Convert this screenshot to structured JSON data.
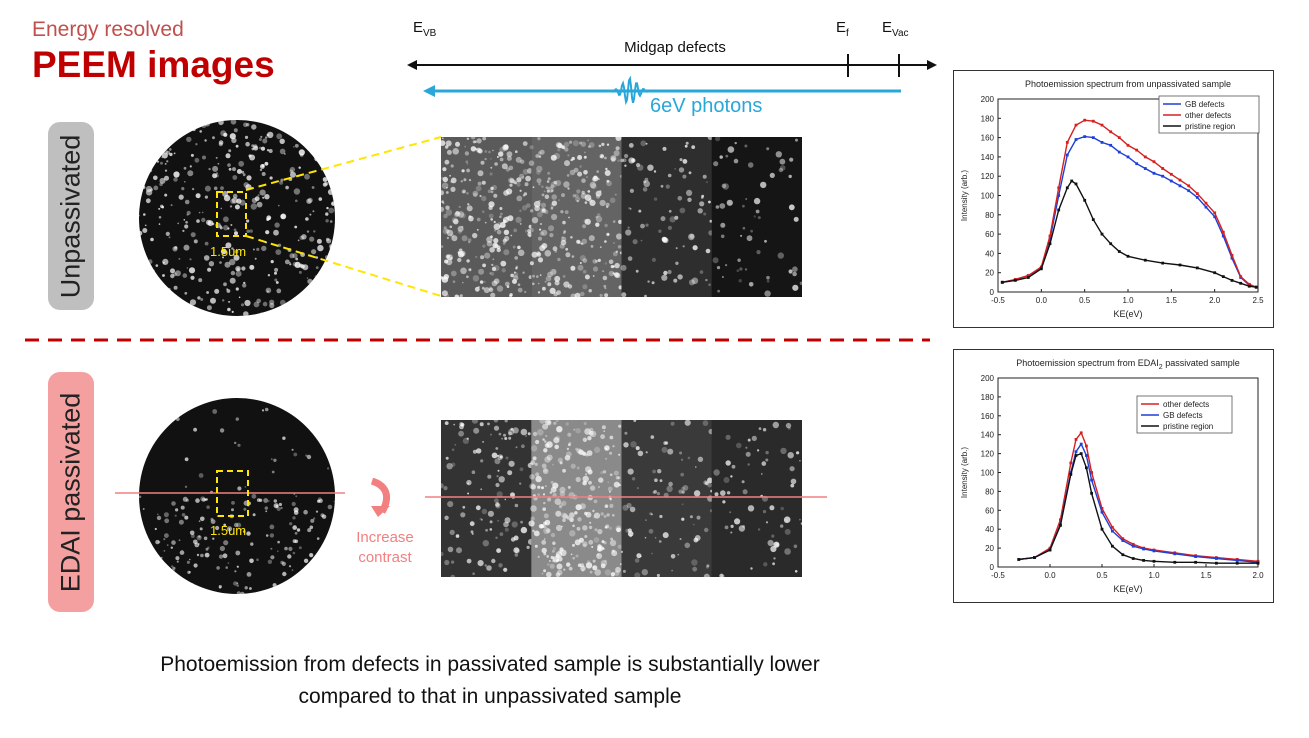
{
  "header": {
    "subtitle": "Energy resolved",
    "title": "PEEM images"
  },
  "labels": {
    "unpassivated": "Unpassivated",
    "passivated": "EDAI passivated",
    "scale": "1.5um",
    "increase": "Increase",
    "contrast": "contrast"
  },
  "energy_axis": {
    "evb_main": "E",
    "evb_sub": "VB",
    "ef_main": "E",
    "ef_sub": "f",
    "evac_main": "E",
    "evac_sub": "Vac",
    "midgap": "Midgap defects",
    "photons": "6eV photons"
  },
  "footer": {
    "line1": "Photoemission from defects in passivated sample is substantially lower",
    "line2": "compared to that in unpassivated sample"
  },
  "colors": {
    "red": "#c00000",
    "blue_series": "#1f3fd6",
    "red_series": "#d62020",
    "black_series": "#111111",
    "photon": "#29a7d8",
    "yellow": "#ffe600"
  },
  "chart_data": [
    {
      "type": "line",
      "title": "Photoemission spectrum from unpassivated sample",
      "xlabel": "KE(eV)",
      "ylabel": "Intensity (arb.)",
      "xlim": [
        -0.5,
        2.5
      ],
      "ylim": [
        0,
        200
      ],
      "xticks": [
        "-0.5",
        "0.0",
        "0.5",
        "1.0",
        "1.5",
        "2.0",
        "2.5"
      ],
      "yticks": [
        "0",
        "20",
        "40",
        "60",
        "80",
        "100",
        "120",
        "140",
        "160",
        "180",
        "200"
      ],
      "legend": "top-right",
      "series": [
        {
          "name": "GB defects",
          "color": "#1f3fd6",
          "x": [
            -0.45,
            -0.3,
            -0.15,
            0.0,
            0.1,
            0.2,
            0.3,
            0.4,
            0.5,
            0.6,
            0.7,
            0.8,
            0.9,
            1.0,
            1.1,
            1.2,
            1.3,
            1.4,
            1.5,
            1.6,
            1.7,
            1.8,
            1.9,
            2.0,
            2.1,
            2.2,
            2.3,
            2.4,
            2.48
          ],
          "y": [
            10,
            13,
            17,
            25,
            55,
            100,
            142,
            158,
            161,
            160,
            155,
            152,
            145,
            140,
            133,
            128,
            123,
            120,
            115,
            110,
            105,
            98,
            88,
            78,
            58,
            35,
            15,
            7,
            5
          ]
        },
        {
          "name": "other defects",
          "color": "#d62020",
          "x": [
            -0.45,
            -0.3,
            -0.15,
            0.0,
            0.1,
            0.2,
            0.3,
            0.4,
            0.5,
            0.6,
            0.7,
            0.8,
            0.9,
            1.0,
            1.1,
            1.2,
            1.3,
            1.4,
            1.5,
            1.6,
            1.7,
            1.8,
            1.9,
            2.0,
            2.1,
            2.2,
            2.3,
            2.4,
            2.48
          ],
          "y": [
            10,
            13,
            17,
            26,
            58,
            108,
            155,
            173,
            178,
            177,
            173,
            166,
            160,
            152,
            147,
            140,
            135,
            128,
            122,
            116,
            110,
            102,
            92,
            82,
            62,
            38,
            16,
            8,
            5
          ]
        },
        {
          "name": "pristine region",
          "color": "#111111",
          "x": [
            -0.45,
            -0.3,
            -0.15,
            0.0,
            0.1,
            0.2,
            0.3,
            0.35,
            0.4,
            0.5,
            0.6,
            0.7,
            0.8,
            0.9,
            1.0,
            1.2,
            1.4,
            1.6,
            1.8,
            2.0,
            2.1,
            2.2,
            2.3,
            2.4,
            2.48
          ],
          "y": [
            10,
            12,
            15,
            24,
            50,
            85,
            108,
            115,
            112,
            95,
            75,
            60,
            50,
            42,
            37,
            33,
            30,
            28,
            25,
            20,
            16,
            12,
            9,
            6,
            5
          ]
        }
      ]
    },
    {
      "type": "line",
      "title_main": "Photoemission spectrum from EDAI",
      "title_sub": "2",
      "title_end": " passivated sample",
      "xlabel": "KE(eV)",
      "ylabel": "Intensity (arb.)",
      "xlim": [
        -0.5,
        2.0
      ],
      "ylim": [
        0,
        200
      ],
      "xticks": [
        "-0.5",
        "0.0",
        "0.5",
        "1.0",
        "1.5",
        "2.0"
      ],
      "yticks": [
        "0",
        "20",
        "40",
        "60",
        "80",
        "100",
        "120",
        "140",
        "160",
        "180",
        "200"
      ],
      "legend": "top-right",
      "series": [
        {
          "name": "other defects",
          "color": "#d62020",
          "x": [
            -0.3,
            -0.15,
            0.0,
            0.1,
            0.2,
            0.25,
            0.3,
            0.35,
            0.4,
            0.5,
            0.6,
            0.7,
            0.8,
            0.9,
            1.0,
            1.2,
            1.4,
            1.6,
            1.8,
            2.0
          ],
          "y": [
            8,
            10,
            20,
            50,
            110,
            135,
            142,
            128,
            100,
            62,
            42,
            30,
            24,
            20,
            18,
            15,
            12,
            10,
            8,
            6
          ]
        },
        {
          "name": "GB defects",
          "color": "#1f3fd6",
          "x": [
            -0.3,
            -0.15,
            0.0,
            0.1,
            0.2,
            0.25,
            0.3,
            0.35,
            0.4,
            0.5,
            0.6,
            0.7,
            0.8,
            0.9,
            1.0,
            1.2,
            1.4,
            1.6,
            1.8,
            2.0
          ],
          "y": [
            8,
            10,
            18,
            45,
            100,
            122,
            130,
            118,
            92,
            58,
            38,
            28,
            22,
            19,
            17,
            14,
            11,
            9,
            7,
            5
          ]
        },
        {
          "name": "pristine region",
          "color": "#111111",
          "x": [
            -0.3,
            -0.15,
            0.0,
            0.1,
            0.2,
            0.25,
            0.3,
            0.35,
            0.4,
            0.5,
            0.6,
            0.7,
            0.8,
            0.9,
            1.0,
            1.2,
            1.4,
            1.6,
            1.8,
            2.0
          ],
          "y": [
            8,
            10,
            18,
            44,
            98,
            118,
            120,
            105,
            78,
            40,
            22,
            13,
            9,
            7,
            6,
            5,
            5,
            4,
            4,
            4
          ]
        }
      ]
    }
  ]
}
